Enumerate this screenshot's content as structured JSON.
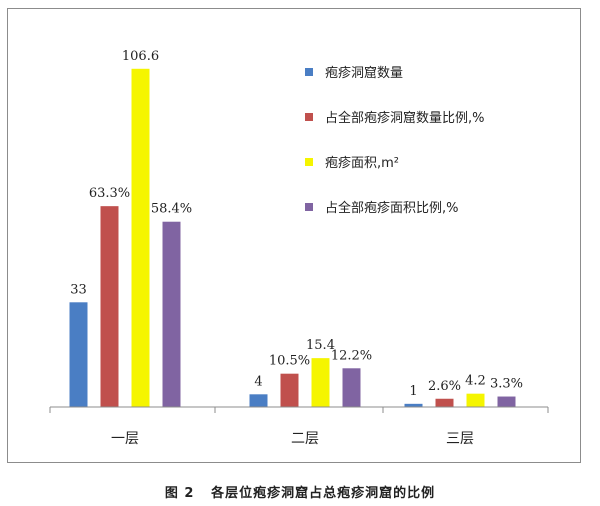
{
  "caption": {
    "figure_no": "图 2",
    "title": "各层位疱疹洞窟占总疱疹洞窟的比例"
  },
  "chart_data": {
    "type": "bar",
    "categories": [
      "一层",
      "二层",
      "三层"
    ],
    "series": [
      {
        "name": "疱疹洞窟数量",
        "color": "#4a7ec4",
        "values": [
          33,
          4,
          1
        ],
        "labels": [
          "33",
          "4",
          "1"
        ]
      },
      {
        "name": "占全部疱疹洞窟数量比例,%",
        "color": "#c0504d",
        "values": [
          63.3,
          10.5,
          2.6
        ],
        "labels": [
          "63.3%",
          "10.5%",
          "2.6%"
        ]
      },
      {
        "name": "疱疹面积,m²",
        "color": "#f5f500",
        "values": [
          106.6,
          15.4,
          4.2
        ],
        "labels": [
          "106.6",
          "15.4",
          "4.2"
        ]
      },
      {
        "name": "占全部疱疹面积比例,%",
        "color": "#8064a2",
        "values": [
          58.4,
          12.2,
          3.3
        ],
        "labels": [
          "58.4%",
          "12.2%",
          "3.3%"
        ]
      }
    ],
    "ylim": [
      0,
      110
    ],
    "grid": false,
    "legend_position": "top-right"
  }
}
